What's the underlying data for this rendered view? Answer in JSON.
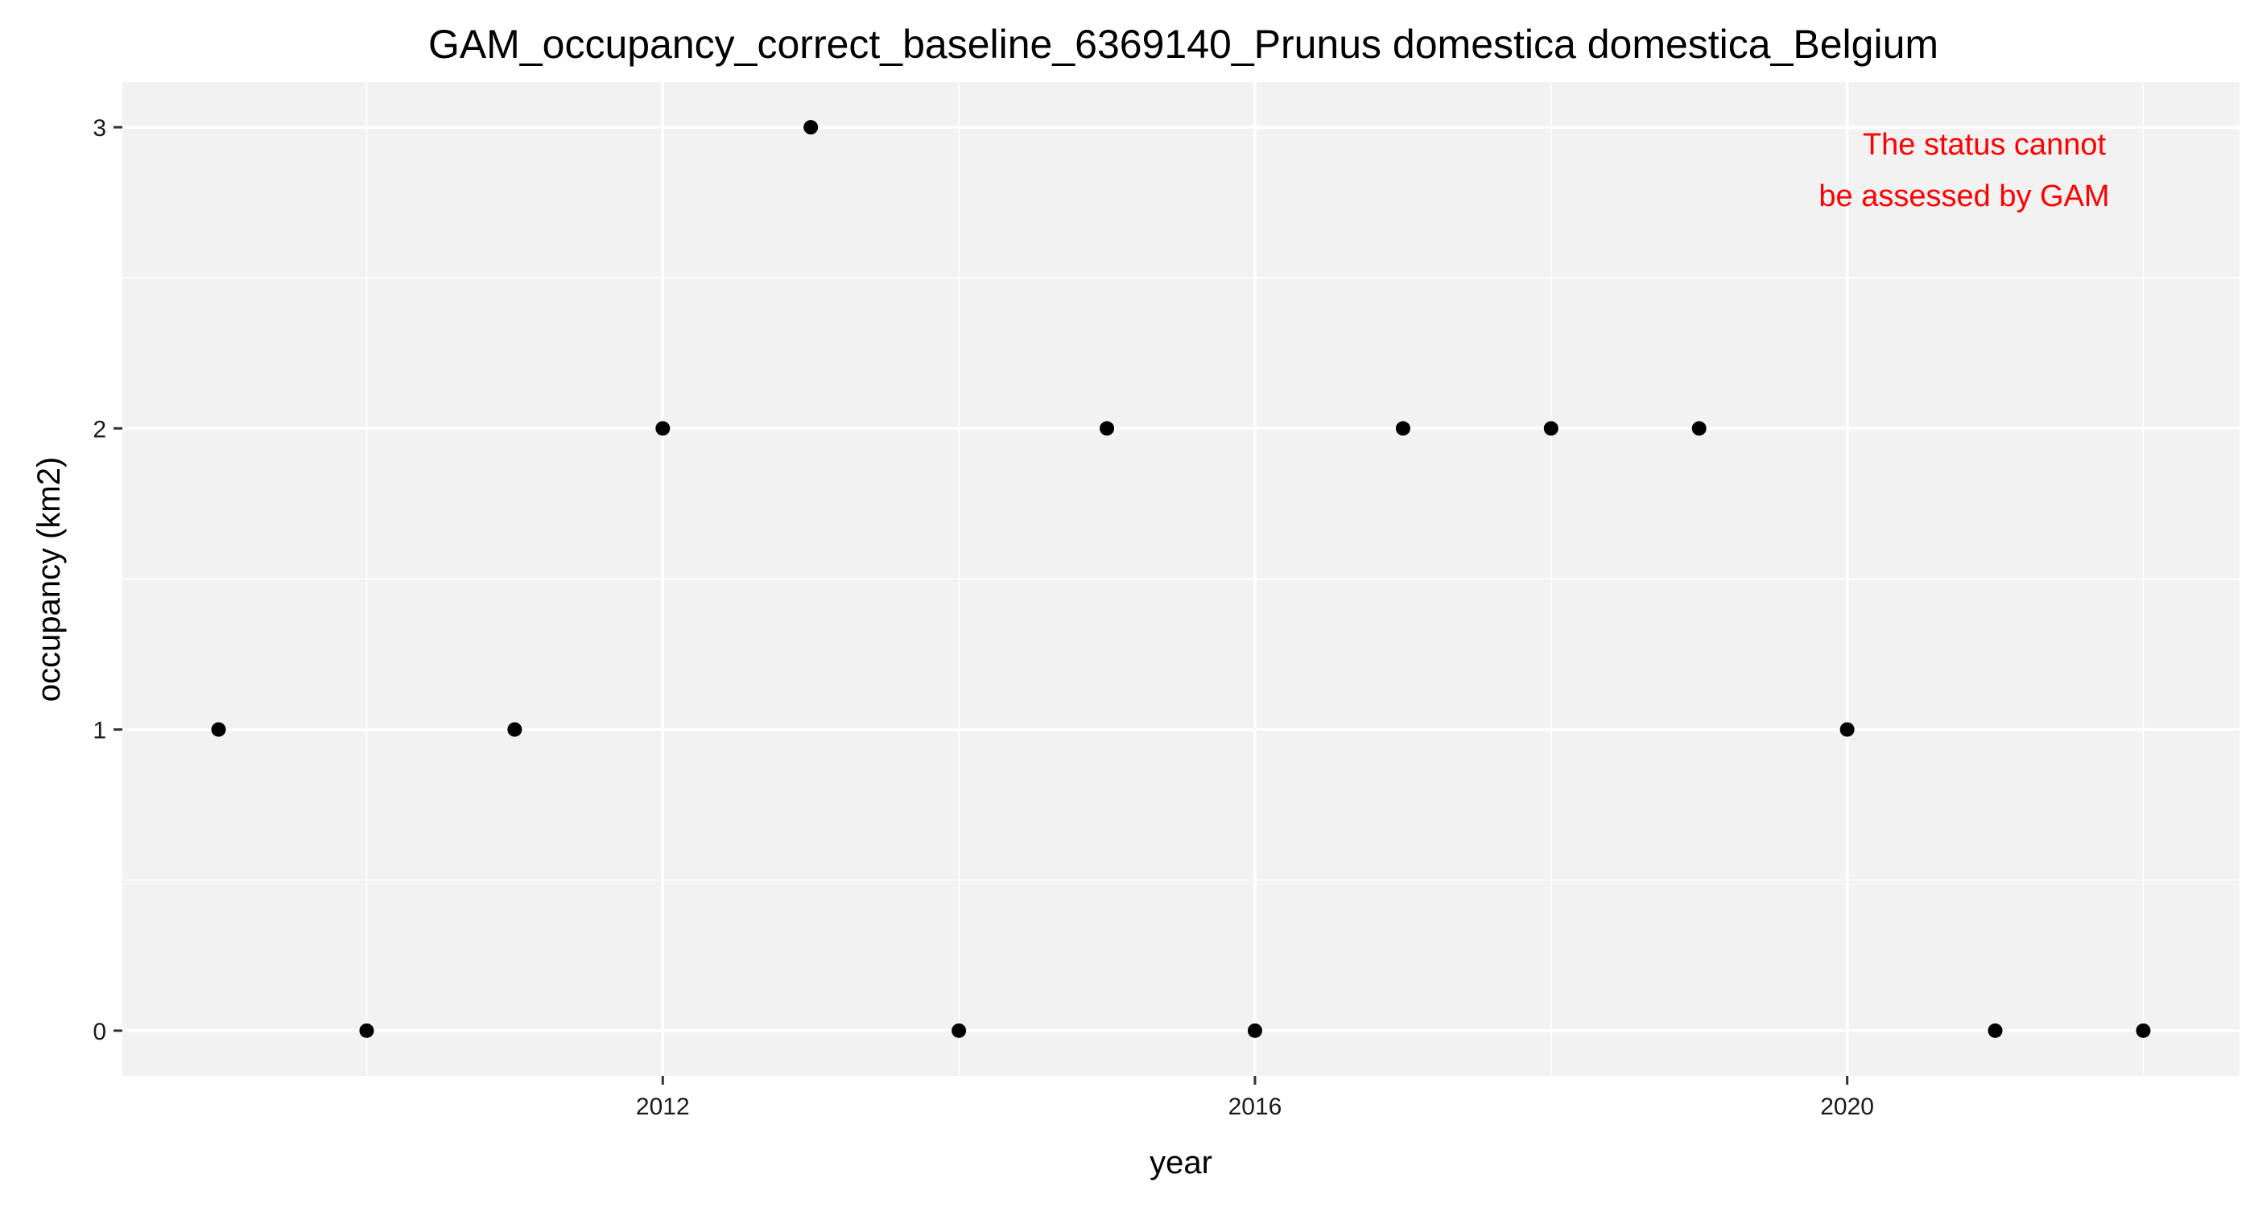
{
  "chart_data": {
    "type": "scatter",
    "title": "GAM_occupancy_correct_baseline_6369140_Prunus domestica domestica_Belgium",
    "xlabel": "year",
    "ylabel": "occupancy (km2)",
    "x_ticks": [
      2012,
      2016,
      2020
    ],
    "y_ticks": [
      0,
      1,
      2,
      3
    ],
    "x_tick_labels": [
      "2012",
      "2016",
      "2020"
    ],
    "y_tick_labels": [
      "0",
      "1",
      "2",
      "3"
    ],
    "xlim": [
      2008.35,
      2022.65
    ],
    "ylim": [
      -0.15,
      3.15
    ],
    "grid": true,
    "background": "#f2f2f2",
    "point_color": "#000000",
    "annotation": {
      "lines": [
        "The status cannot",
        "be assessed by GAM"
      ],
      "color": "#ff0000"
    },
    "points": [
      {
        "x": 2009,
        "y": 1
      },
      {
        "x": 2010,
        "y": 0
      },
      {
        "x": 2011,
        "y": 1
      },
      {
        "x": 2012,
        "y": 2
      },
      {
        "x": 2013,
        "y": 3
      },
      {
        "x": 2014,
        "y": 0
      },
      {
        "x": 2015,
        "y": 2
      },
      {
        "x": 2016,
        "y": 0
      },
      {
        "x": 2017,
        "y": 2
      },
      {
        "x": 2018,
        "y": 2
      },
      {
        "x": 2019,
        "y": 2
      },
      {
        "x": 2020,
        "y": 1
      },
      {
        "x": 2021,
        "y": 0
      },
      {
        "x": 2022,
        "y": 0
      }
    ]
  }
}
